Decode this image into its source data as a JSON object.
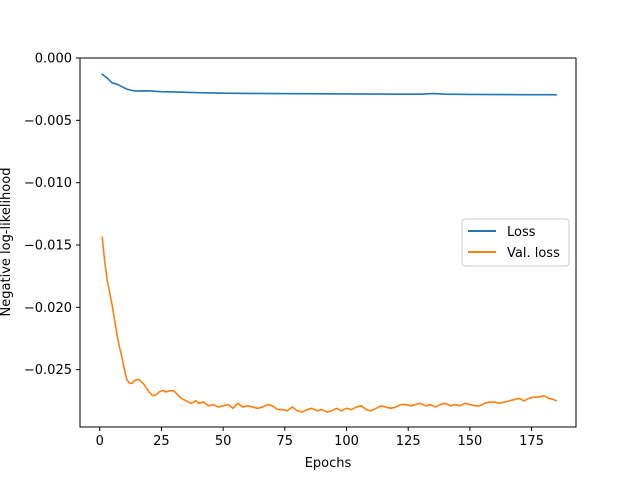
{
  "chart_data": {
    "type": "line",
    "title": "",
    "xlabel": "Epochs",
    "ylabel": "Negative log-likelihood",
    "xlim": [
      -8,
      193
    ],
    "ylim": [
      -0.0296,
      0.0
    ],
    "xticks": [
      0,
      25,
      50,
      75,
      100,
      125,
      150,
      175
    ],
    "xtick_labels": [
      "0",
      "25",
      "50",
      "75",
      "100",
      "125",
      "150",
      "175"
    ],
    "yticks": [
      0.0,
      -0.005,
      -0.01,
      -0.015,
      -0.02,
      -0.025
    ],
    "ytick_labels": [
      "0.000",
      "−0.005",
      "−0.010",
      "−0.015",
      "−0.020",
      "−0.025"
    ],
    "grid": false,
    "legend_position": "center-right",
    "series": [
      {
        "name": "Loss",
        "color": "#1f77b4",
        "x": [
          1,
          3,
          5,
          7,
          9,
          11,
          13,
          15,
          18,
          21,
          25,
          30,
          35,
          40,
          45,
          50,
          60,
          70,
          80,
          90,
          100,
          110,
          120,
          130,
          135,
          140,
          150,
          160,
          170,
          180,
          185
        ],
        "y": [
          -0.0013,
          -0.0016,
          -0.002,
          -0.0021,
          -0.0023,
          -0.0025,
          -0.0026,
          -0.00265,
          -0.00263,
          -0.00265,
          -0.0027,
          -0.00272,
          -0.00275,
          -0.00278,
          -0.0028,
          -0.00282,
          -0.00284,
          -0.00285,
          -0.00286,
          -0.00287,
          -0.00288,
          -0.00289,
          -0.0029,
          -0.0029,
          -0.00285,
          -0.0029,
          -0.00292,
          -0.00293,
          -0.00294,
          -0.00294,
          -0.00295
        ]
      },
      {
        "name": "Val. loss",
        "color": "#ff7f0e",
        "x": [
          1,
          2,
          3,
          4,
          5,
          6,
          7,
          8,
          9,
          10,
          11,
          12,
          13,
          14,
          15,
          16,
          17,
          18,
          19,
          20,
          21,
          22,
          23,
          24,
          25,
          26,
          27,
          28,
          29,
          30,
          31,
          32,
          33,
          34,
          35,
          36,
          37,
          38,
          39,
          40,
          42,
          44,
          46,
          48,
          50,
          52,
          54,
          56,
          58,
          60,
          62,
          64,
          66,
          68,
          70,
          72,
          74,
          76,
          78,
          80,
          82,
          84,
          86,
          88,
          90,
          92,
          94,
          96,
          98,
          100,
          102,
          104,
          106,
          108,
          110,
          112,
          114,
          116,
          118,
          120,
          122,
          124,
          126,
          128,
          130,
          132,
          134,
          136,
          138,
          140,
          142,
          144,
          146,
          148,
          150,
          152,
          154,
          156,
          158,
          160,
          162,
          164,
          166,
          168,
          170,
          172,
          174,
          176,
          178,
          180,
          182,
          184,
          185
        ],
        "y": [
          -0.0144,
          -0.0163,
          -0.0178,
          -0.0188,
          -0.0198,
          -0.021,
          -0.0222,
          -0.0232,
          -0.024,
          -0.025,
          -0.0258,
          -0.0261,
          -0.0261,
          -0.0259,
          -0.0258,
          -0.0258,
          -0.026,
          -0.0262,
          -0.0265,
          -0.0268,
          -0.027,
          -0.0271,
          -0.027,
          -0.0268,
          -0.0267,
          -0.0267,
          -0.0268,
          -0.0267,
          -0.0267,
          -0.0267,
          -0.0269,
          -0.0271,
          -0.0273,
          -0.0274,
          -0.0275,
          -0.0276,
          -0.0277,
          -0.0276,
          -0.0275,
          -0.0277,
          -0.0276,
          -0.0279,
          -0.0278,
          -0.028,
          -0.0279,
          -0.0278,
          -0.0281,
          -0.0277,
          -0.028,
          -0.0279,
          -0.028,
          -0.0281,
          -0.028,
          -0.0278,
          -0.0279,
          -0.0282,
          -0.0282,
          -0.0283,
          -0.028,
          -0.0283,
          -0.0284,
          -0.0282,
          -0.0281,
          -0.0283,
          -0.0282,
          -0.0284,
          -0.0283,
          -0.0281,
          -0.0283,
          -0.0281,
          -0.0282,
          -0.028,
          -0.0279,
          -0.0282,
          -0.0283,
          -0.0281,
          -0.0279,
          -0.028,
          -0.0281,
          -0.028,
          -0.0278,
          -0.0278,
          -0.0279,
          -0.0278,
          -0.0277,
          -0.0279,
          -0.0278,
          -0.028,
          -0.0278,
          -0.0277,
          -0.0279,
          -0.0278,
          -0.0279,
          -0.0277,
          -0.0278,
          -0.0279,
          -0.0279,
          -0.0277,
          -0.0276,
          -0.0276,
          -0.0277,
          -0.0276,
          -0.0275,
          -0.0274,
          -0.0273,
          -0.0275,
          -0.0273,
          -0.0272,
          -0.0272,
          -0.0271,
          -0.0273,
          -0.0274,
          -0.0275
        ]
      }
    ]
  }
}
